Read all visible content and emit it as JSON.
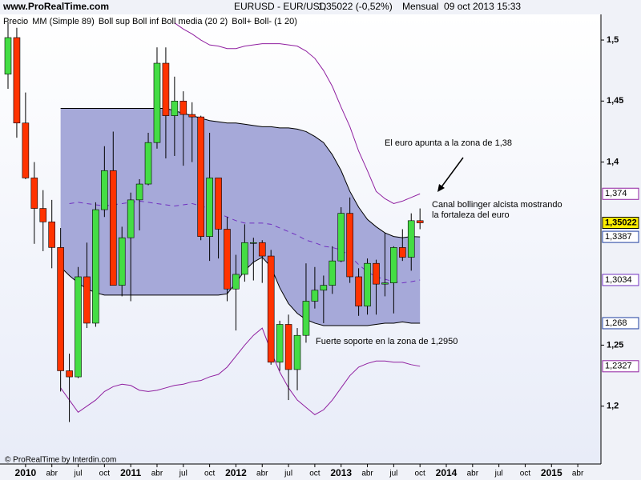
{
  "chart_data": {
    "type": "candlestick",
    "watermark": "www.ProRealTime.com",
    "title": "EURUSD - EUR/USD",
    "price_change": "1,35022 (-0,52%)",
    "period": "Mensual  09 oct 2013 15:33",
    "legend": [
      {
        "text": "Precio",
        "color": "#000000"
      },
      {
        "text": "MM (Simple 89)",
        "color": "#e07060"
      },
      {
        "text": "Boll sup Boll inf Boll media (20 2)",
        "color": "#8020a0"
      },
      {
        "text": "Boll+ Boll- (1 20)",
        "color": "#000000"
      }
    ],
    "x_labels": [
      "2010",
      "abr",
      "jul",
      "oct",
      "2011",
      "abr",
      "jul",
      "oct",
      "2012",
      "abr",
      "jul",
      "oct",
      "2013",
      "abr",
      "jul",
      "oct",
      "2014",
      "abr",
      "jul",
      "oct",
      "2015",
      "abr"
    ],
    "ylim": [
      1.1526,
      1.521
    ],
    "yticks": [
      {
        "value": 1.5,
        "label": "1,5"
      },
      {
        "value": 1.45,
        "label": "1,45"
      },
      {
        "value": 1.4,
        "label": "1,4"
      },
      {
        "value": 1.25,
        "label": "1,25"
      },
      {
        "value": 1.2,
        "label": "1,2"
      }
    ],
    "up_color": "#44dd44",
    "down_color": "#ff3300",
    "open": [
      1.472,
      1.502,
      1.432,
      1.387,
      1.362,
      1.351,
      1.33,
      1.229,
      1.224,
      1.306,
      1.268,
      1.361,
      1.393,
      1.299,
      1.338,
      1.369,
      1.382,
      1.416,
      1.481,
      1.438,
      1.45,
      1.439,
      1.437,
      1.339,
      1.387,
      1.345,
      1.296,
      1.308,
      1.334,
      1.334,
      1.323,
      1.236,
      1.267,
      1.23,
      1.258,
      1.286,
      1.295,
      1.299,
      1.319,
      1.358,
      1.306,
      1.282,
      1.317,
      1.3,
      1.301,
      1.33,
      1.322,
      1.352
    ],
    "high": [
      1.515,
      1.51,
      1.457,
      1.4,
      1.377,
      1.369,
      1.346,
      1.243,
      1.314,
      1.334,
      1.367,
      1.413,
      1.425,
      1.347,
      1.375,
      1.386,
      1.424,
      1.494,
      1.494,
      1.47,
      1.458,
      1.449,
      1.438,
      1.424,
      1.387,
      1.355,
      1.324,
      1.349,
      1.338,
      1.336,
      1.328,
      1.27,
      1.275,
      1.264,
      1.317,
      1.314,
      1.307,
      1.331,
      1.363,
      1.371,
      1.313,
      1.321,
      1.32,
      1.342,
      1.331,
      1.345,
      1.358,
      1.362
    ],
    "low": [
      1.46,
      1.42,
      1.386,
      1.333,
      1.327,
      1.313,
      1.212,
      1.187,
      1.223,
      1.264,
      1.265,
      1.355,
      1.299,
      1.29,
      1.286,
      1.344,
      1.381,
      1.411,
      1.403,
      1.405,
      1.397,
      1.4,
      1.336,
      1.319,
      1.321,
      1.286,
      1.262,
      1.302,
      1.303,
      1.301,
      1.234,
      1.229,
      1.205,
      1.213,
      1.252,
      1.28,
      1.268,
      1.292,
      1.318,
      1.301,
      1.274,
      1.275,
      1.275,
      1.29,
      1.276,
      1.319,
      1.311,
      1.345
    ],
    "close": [
      1.502,
      1.432,
      1.387,
      1.362,
      1.351,
      1.33,
      1.229,
      1.224,
      1.306,
      1.268,
      1.361,
      1.393,
      1.299,
      1.338,
      1.369,
      1.382,
      1.416,
      1.481,
      1.438,
      1.45,
      1.439,
      1.437,
      1.339,
      1.387,
      1.345,
      1.296,
      1.308,
      1.334,
      1.334,
      1.323,
      1.236,
      1.267,
      1.23,
      1.258,
      1.286,
      1.295,
      1.299,
      1.319,
      1.358,
      1.306,
      1.282,
      1.317,
      1.3,
      1.301,
      1.33,
      1.322,
      1.352,
      1.35022
    ],
    "close_label": "1,35022",
    "band": {
      "fill": "#a6a9d9",
      "upper": {
        "color": "#000000",
        "last_label": "1,3387",
        "values": [
          null,
          null,
          null,
          null,
          null,
          null,
          1.444,
          1.444,
          1.444,
          1.444,
          1.444,
          1.444,
          1.444,
          1.444,
          1.444,
          1.444,
          1.444,
          1.444,
          1.444,
          1.442,
          1.44,
          1.438,
          1.436,
          1.434,
          1.433,
          1.432,
          1.432,
          1.431,
          1.43,
          1.429,
          1.429,
          1.428,
          1.428,
          1.427,
          1.425,
          1.421,
          1.416,
          1.406,
          1.393,
          1.376,
          1.363,
          1.353,
          1.347,
          1.342,
          1.339,
          1.338,
          1.339,
          1.3387
        ]
      },
      "lower": {
        "color": "#000000",
        "last_label": "1,268",
        "values": [
          null,
          null,
          null,
          null,
          null,
          null,
          1.314,
          1.307,
          1.301,
          1.296,
          1.293,
          1.291,
          1.291,
          1.291,
          1.291,
          1.291,
          1.291,
          1.291,
          1.291,
          1.291,
          1.291,
          1.291,
          1.291,
          1.291,
          1.291,
          1.292,
          1.301,
          1.311,
          1.318,
          1.322,
          1.314,
          1.297,
          1.284,
          1.276,
          1.271,
          1.268,
          1.266,
          1.266,
          1.266,
          1.266,
          1.266,
          1.266,
          1.267,
          1.268,
          1.268,
          1.269,
          1.268,
          1.268
        ]
      },
      "middle": {
        "color": "#7030c0",
        "last_label": "1,3034",
        "values": [
          null,
          null,
          null,
          null,
          null,
          null,
          null,
          1.366,
          1.367,
          1.366,
          1.365,
          1.364,
          1.365,
          1.366,
          1.367,
          1.368,
          1.367,
          1.366,
          1.365,
          1.364,
          1.365,
          1.366,
          1.364,
          1.362,
          1.358,
          1.355,
          1.352,
          1.35,
          1.35,
          1.35,
          1.349,
          1.346,
          1.343,
          1.34,
          1.336,
          1.334,
          1.331,
          1.33,
          1.328,
          1.323,
          1.316,
          1.31,
          1.306,
          1.304,
          1.302,
          1.301,
          1.302,
          1.3034
        ]
      }
    },
    "outer": [
      {
        "color": "#9020a0",
        "last_label": "1,374",
        "values": [
          null,
          null,
          null,
          null,
          null,
          null,
          null,
          null,
          null,
          null,
          null,
          null,
          null,
          null,
          null,
          null,
          null,
          null,
          null,
          1.514,
          1.509,
          1.505,
          1.5,
          1.496,
          1.495,
          1.493,
          1.493,
          1.495,
          1.496,
          1.497,
          1.497,
          1.497,
          1.496,
          1.495,
          1.491,
          1.485,
          1.475,
          1.462,
          1.445,
          1.429,
          1.409,
          1.393,
          1.376,
          1.37,
          1.366,
          1.368,
          1.371,
          1.374
        ]
      },
      {
        "color": "#9020a0",
        "last_label": "1,2327",
        "values": [
          null,
          null,
          null,
          null,
          null,
          null,
          1.215,
          1.205,
          1.195,
          1.2,
          1.205,
          1.212,
          1.216,
          1.218,
          1.217,
          1.213,
          1.212,
          1.213,
          1.215,
          1.217,
          1.218,
          1.22,
          1.221,
          1.224,
          1.226,
          1.232,
          1.241,
          1.25,
          1.258,
          1.264,
          1.245,
          1.228,
          1.215,
          1.205,
          1.199,
          1.193,
          1.197,
          1.205,
          1.215,
          1.225,
          1.232,
          1.235,
          1.237,
          1.237,
          1.236,
          1.236,
          1.234,
          1.2327
        ]
      }
    ],
    "annotations": [
      "El euro apunta a la zona de 1,38",
      "Canal bollinger alcista mostrando",
      "la fortaleza del euro",
      "Fuerte soporte en la zona de 1,2950"
    ],
    "footer": "© ProRealTime by Interdin.com"
  }
}
